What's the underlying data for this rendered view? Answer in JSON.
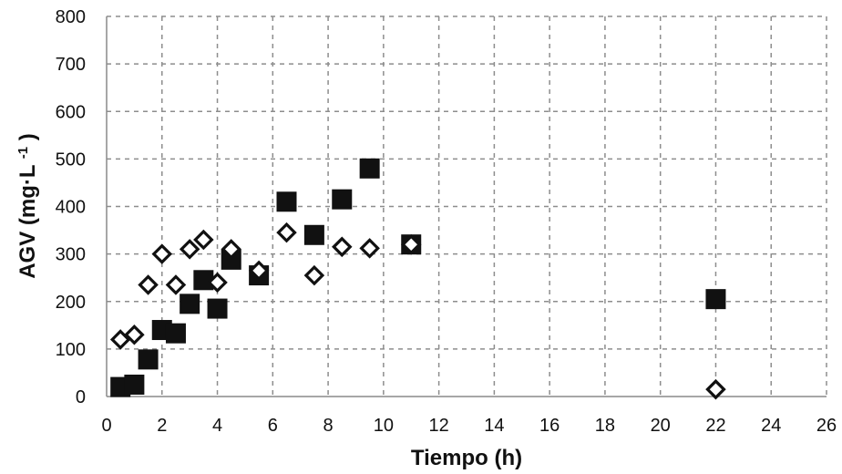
{
  "chart_data": {
    "type": "scatter",
    "title": "",
    "xlabel": "Tiempo (h)",
    "ylabel_main": "AGV (mg·L",
    "ylabel_sup": "-1",
    "ylabel_end": ")",
    "xlim": [
      0,
      26
    ],
    "ylim": [
      0,
      800
    ],
    "xticks": [
      "0",
      "2",
      "4",
      "6",
      "8",
      "10",
      "12",
      "14",
      "16",
      "18",
      "20",
      "22",
      "24",
      "26"
    ],
    "yticks": [
      "0",
      "100",
      "200",
      "300",
      "400",
      "500",
      "600",
      "700",
      "800"
    ],
    "grid": true,
    "legend": "none",
    "series": [
      {
        "marker": "filled-square",
        "color": "#111111",
        "points": [
          {
            "x": 0.5,
            "y": 20
          },
          {
            "x": 1,
            "y": 25
          },
          {
            "x": 1.5,
            "y": 78
          },
          {
            "x": 2,
            "y": 140
          },
          {
            "x": 2.5,
            "y": 133
          },
          {
            "x": 3,
            "y": 195
          },
          {
            "x": 3.5,
            "y": 245
          },
          {
            "x": 4,
            "y": 185
          },
          {
            "x": 4.5,
            "y": 288
          },
          {
            "x": 5.5,
            "y": 255
          },
          {
            "x": 6.5,
            "y": 410
          },
          {
            "x": 7.5,
            "y": 340
          },
          {
            "x": 8.5,
            "y": 415
          },
          {
            "x": 9.5,
            "y": 480
          },
          {
            "x": 11,
            "y": 320
          },
          {
            "x": 22,
            "y": 205
          }
        ]
      },
      {
        "marker": "open-diamond",
        "color": "#111111",
        "points": [
          {
            "x": 0.5,
            "y": 120
          },
          {
            "x": 1,
            "y": 130
          },
          {
            "x": 1.5,
            "y": 235
          },
          {
            "x": 2,
            "y": 300
          },
          {
            "x": 2.5,
            "y": 235
          },
          {
            "x": 3,
            "y": 310
          },
          {
            "x": 3.5,
            "y": 330
          },
          {
            "x": 4,
            "y": 240
          },
          {
            "x": 4.5,
            "y": 310
          },
          {
            "x": 5.5,
            "y": 265
          },
          {
            "x": 6.5,
            "y": 345
          },
          {
            "x": 7.5,
            "y": 255
          },
          {
            "x": 8.5,
            "y": 315
          },
          {
            "x": 9.5,
            "y": 312
          },
          {
            "x": 11,
            "y": 320
          },
          {
            "x": 22,
            "y": 15
          }
        ]
      }
    ]
  }
}
